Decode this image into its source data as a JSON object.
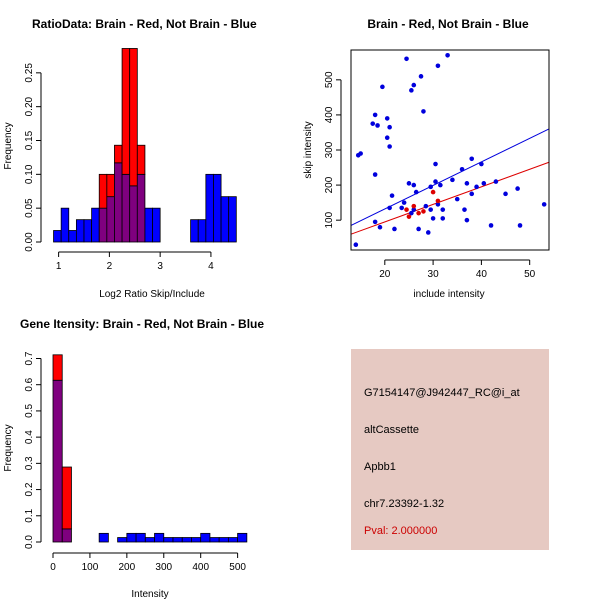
{
  "colors": {
    "brain": "#ff0000",
    "not_brain": "#0000ff",
    "overlap": "#7f007f",
    "point_brain": "#dd0000",
    "point_not_brain": "#0000dd",
    "info_bg": "#e6c9c2",
    "pval": "#cc0000"
  },
  "chart_data": [
    {
      "type": "bar",
      "subtype": "overlaid-histogram",
      "title": "RatioData: Brain - Red, Not Brain - Blue",
      "xlabel": "Log2 Ratio Skip/Include",
      "ylabel": "Frequency",
      "xlim": [
        0.85,
        4.75
      ],
      "ylim": [
        0,
        0.3
      ],
      "xticks": [
        1,
        2,
        3,
        4
      ],
      "yticks": [
        0.0,
        0.05,
        0.1,
        0.15,
        0.2,
        0.25
      ],
      "bin_width": 0.15,
      "series": [
        {
          "name": "Brain",
          "color": "red",
          "bins": [
            {
              "x0": 1.8,
              "value": 0.1
            },
            {
              "x0": 1.95,
              "value": 0.1
            },
            {
              "x0": 2.1,
              "value": 0.143
            },
            {
              "x0": 2.25,
              "value": 0.286
            },
            {
              "x0": 2.4,
              "value": 0.286
            },
            {
              "x0": 2.55,
              "value": 0.143
            }
          ]
        },
        {
          "name": "Not Brain",
          "color": "blue",
          "bins": [
            {
              "x0": 0.9,
              "value": 0.017
            },
            {
              "x0": 1.05,
              "value": 0.05
            },
            {
              "x0": 1.2,
              "value": 0.017
            },
            {
              "x0": 1.35,
              "value": 0.033
            },
            {
              "x0": 1.5,
              "value": 0.033
            },
            {
              "x0": 1.65,
              "value": 0.05
            },
            {
              "x0": 1.8,
              "value": 0.05
            },
            {
              "x0": 1.95,
              "value": 0.067
            },
            {
              "x0": 2.1,
              "value": 0.117
            },
            {
              "x0": 2.25,
              "value": 0.1
            },
            {
              "x0": 2.4,
              "value": 0.083
            },
            {
              "x0": 2.55,
              "value": 0.1
            },
            {
              "x0": 2.7,
              "value": 0.05
            },
            {
              "x0": 2.85,
              "value": 0.05
            },
            {
              "x0": 3.6,
              "value": 0.033
            },
            {
              "x0": 3.75,
              "value": 0.033
            },
            {
              "x0": 3.9,
              "value": 0.1
            },
            {
              "x0": 4.05,
              "value": 0.1
            },
            {
              "x0": 4.2,
              "value": 0.067
            },
            {
              "x0": 4.35,
              "value": 0.067
            }
          ]
        }
      ]
    },
    {
      "type": "scatter",
      "title": "Brain - Red, Not Brain - Blue",
      "xlabel": "include intensity",
      "ylabel": "skip intensity",
      "xlim": [
        13,
        54
      ],
      "ylim": [
        15,
        585
      ],
      "xticks": [
        20,
        30,
        40,
        50
      ],
      "yticks": [
        100,
        200,
        300,
        400,
        500
      ],
      "series": [
        {
          "name": "Not Brain",
          "color": "blue",
          "points": [
            [
              14,
              30
            ],
            [
              14.5,
              285
            ],
            [
              15,
              290
            ],
            [
              17.5,
              375
            ],
            [
              18,
              95
            ],
            [
              18,
              230
            ],
            [
              18,
              400
            ],
            [
              18.5,
              370
            ],
            [
              19,
              80
            ],
            [
              19.5,
              480
            ],
            [
              20.5,
              390
            ],
            [
              20.5,
              335
            ],
            [
              21,
              365
            ],
            [
              21,
              310
            ],
            [
              21,
              135
            ],
            [
              21.5,
              170
            ],
            [
              22,
              75
            ],
            [
              23.5,
              135
            ],
            [
              24,
              150
            ],
            [
              24.5,
              560
            ],
            [
              25,
              205
            ],
            [
              25.5,
              470
            ],
            [
              25.5,
              120
            ],
            [
              26,
              130
            ],
            [
              26,
              200
            ],
            [
              26,
              485
            ],
            [
              26.5,
              180
            ],
            [
              27,
              75
            ],
            [
              27.5,
              510
            ],
            [
              28,
              410
            ],
            [
              28.5,
              140
            ],
            [
              29,
              65
            ],
            [
              29.5,
              130
            ],
            [
              29.5,
              195
            ],
            [
              30,
              105
            ],
            [
              30.5,
              260
            ],
            [
              30.5,
              210
            ],
            [
              31,
              145
            ],
            [
              31,
              540
            ],
            [
              31.5,
              200
            ],
            [
              32,
              105
            ],
            [
              32,
              130
            ],
            [
              33,
              570
            ],
            [
              34,
              215
            ],
            [
              35,
              160
            ],
            [
              36,
              245
            ],
            [
              36.5,
              130
            ],
            [
              37,
              100
            ],
            [
              37,
              205
            ],
            [
              38,
              275
            ],
            [
              38,
              175
            ],
            [
              39,
              195
            ],
            [
              40,
              260
            ],
            [
              40.5,
              205
            ],
            [
              42,
              85
            ],
            [
              43,
              210
            ],
            [
              45,
              175
            ],
            [
              47.5,
              190
            ],
            [
              48,
              85
            ],
            [
              53,
              145
            ]
          ]
        },
        {
          "name": "Brain",
          "color": "red",
          "points": [
            [
              25,
              110
            ],
            [
              26,
              140
            ],
            [
              27,
              120
            ],
            [
              28,
              125
            ],
            [
              30,
              180
            ],
            [
              31,
              155
            ],
            [
              24.5,
              130
            ]
          ]
        }
      ],
      "fit_lines": [
        {
          "name": "Not Brain fit",
          "color": "blue",
          "x": [
            13,
            54
          ],
          "y": [
            85,
            360
          ]
        },
        {
          "name": "Brain fit",
          "color": "red",
          "x": [
            13,
            54
          ],
          "y": [
            60,
            265
          ]
        }
      ]
    },
    {
      "type": "bar",
      "subtype": "overlaid-histogram",
      "title": "Gene Itensity: Brain - Red, Not Brain - Blue",
      "xlabel": "Intensity",
      "ylabel": "Frequency",
      "xlim": [
        0,
        520
      ],
      "ylim": [
        0,
        0.74
      ],
      "xticks": [
        0,
        100,
        200,
        300,
        400,
        500
      ],
      "yticks": [
        0.0,
        0.1,
        0.2,
        0.3,
        0.4,
        0.5,
        0.6,
        0.7
      ],
      "bin_width": 25,
      "series": [
        {
          "name": "Brain",
          "color": "red",
          "bins": [
            {
              "x0": 0,
              "value": 0.714
            },
            {
              "x0": 25,
              "value": 0.286
            }
          ]
        },
        {
          "name": "Not Brain",
          "color": "blue",
          "bins": [
            {
              "x0": 0,
              "value": 0.617
            },
            {
              "x0": 25,
              "value": 0.05
            },
            {
              "x0": 125,
              "value": 0.033
            },
            {
              "x0": 175,
              "value": 0.017
            },
            {
              "x0": 200,
              "value": 0.033
            },
            {
              "x0": 225,
              "value": 0.033
            },
            {
              "x0": 250,
              "value": 0.017
            },
            {
              "x0": 275,
              "value": 0.033
            },
            {
              "x0": 300,
              "value": 0.017
            },
            {
              "x0": 325,
              "value": 0.017
            },
            {
              "x0": 350,
              "value": 0.017
            },
            {
              "x0": 375,
              "value": 0.017
            },
            {
              "x0": 400,
              "value": 0.033
            },
            {
              "x0": 425,
              "value": 0.017
            },
            {
              "x0": 450,
              "value": 0.017
            },
            {
              "x0": 475,
              "value": 0.017
            },
            {
              "x0": 500,
              "value": 0.033
            }
          ]
        }
      ]
    }
  ],
  "info": {
    "probe_id": "G7154147@J942447_RC@i_at",
    "event_type": "altCassette",
    "gene": "Apbb1",
    "location": "chr7.23392-1.32",
    "pval": "Pval: 2.000000"
  }
}
